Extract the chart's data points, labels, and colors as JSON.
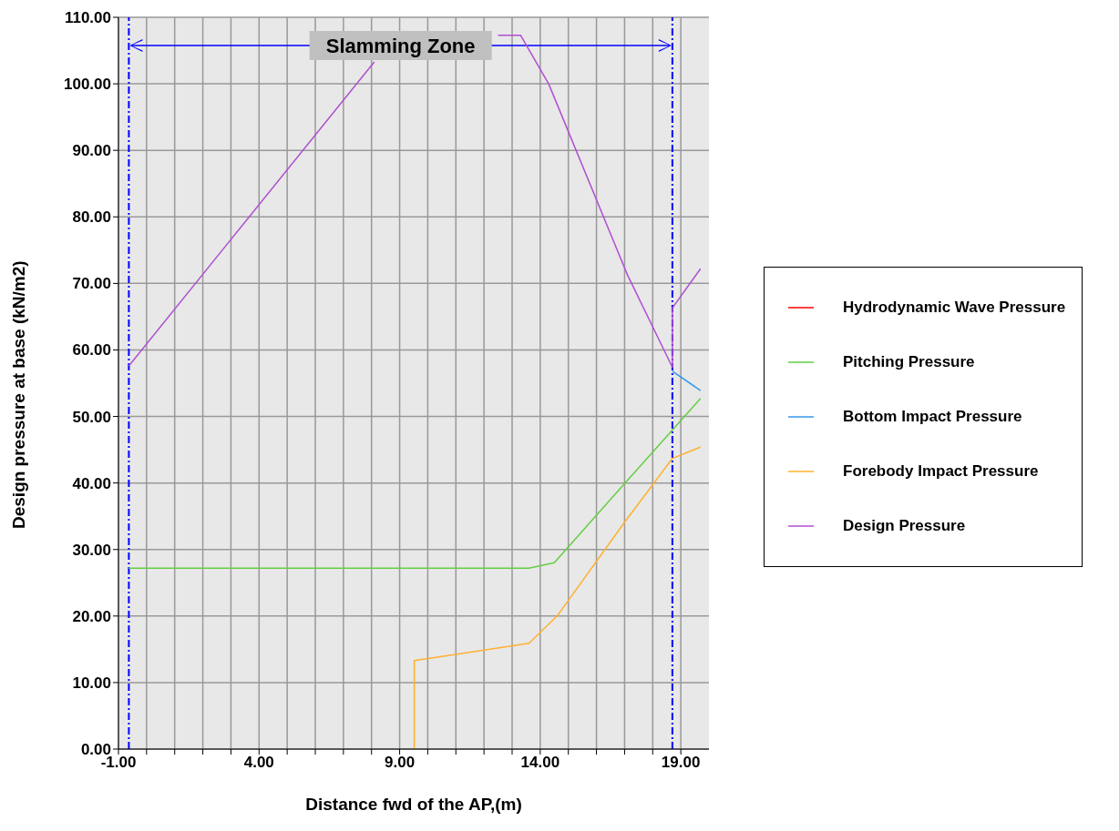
{
  "chart_data": {
    "type": "line",
    "xlabel": "Distance fwd of the AP,(m)",
    "ylabel": "Design pressure at base (kN/m2)",
    "xlim": [
      -1,
      20
    ],
    "ylim": [
      0,
      110
    ],
    "xticks": [
      {
        "value": -1,
        "label": "-1.00"
      },
      {
        "value": 0,
        "label": null
      },
      {
        "value": 1,
        "label": null
      },
      {
        "value": 2,
        "label": null
      },
      {
        "value": 3,
        "label": null
      },
      {
        "value": 4,
        "label": "4.00"
      },
      {
        "value": 5,
        "label": null
      },
      {
        "value": 6,
        "label": null
      },
      {
        "value": 7,
        "label": null
      },
      {
        "value": 8,
        "label": null
      },
      {
        "value": 9,
        "label": "9.00"
      },
      {
        "value": 10,
        "label": null
      },
      {
        "value": 11,
        "label": null
      },
      {
        "value": 12,
        "label": null
      },
      {
        "value": 13,
        "label": null
      },
      {
        "value": 14,
        "label": "14.00"
      },
      {
        "value": 15,
        "label": null
      },
      {
        "value": 16,
        "label": null
      },
      {
        "value": 17,
        "label": null
      },
      {
        "value": 18,
        "label": null
      },
      {
        "value": 19,
        "label": "19.00"
      }
    ],
    "yticks": [
      {
        "value": 0,
        "label": "0.00"
      },
      {
        "value": 10,
        "label": "10.00"
      },
      {
        "value": 20,
        "label": "20.00"
      },
      {
        "value": 30,
        "label": "30.00"
      },
      {
        "value": 40,
        "label": "40.00"
      },
      {
        "value": 50,
        "label": "50.00"
      },
      {
        "value": 60,
        "label": "60.00"
      },
      {
        "value": 70,
        "label": "70.00"
      },
      {
        "value": 80,
        "label": "80.00"
      },
      {
        "value": 90,
        "label": "90.00"
      },
      {
        "value": 100,
        "label": "100.00"
      },
      {
        "value": 110,
        "label": "110.00"
      }
    ],
    "grid": true,
    "legend": "right",
    "marker": "none",
    "line_style": "solid",
    "series": [
      {
        "name": "Hydrodynamic Wave Pressure",
        "color": "#ff0000"
      },
      {
        "name": "Pitching Pressure",
        "color": "#66cc44",
        "x": [
          -0.63,
          13.6,
          14.5,
          17.0,
          19.7
        ],
        "values": [
          27.2,
          27.2,
          28.0,
          39.9,
          52.7
        ]
      },
      {
        "name": "Bottom Impact Pressure",
        "color": "#3399ee",
        "x": [
          18.7,
          19.7
        ],
        "values": [
          56.8,
          53.9
        ]
      },
      {
        "name": "Forebody Impact Pressure",
        "color": "#ffb030",
        "x": [
          9.52,
          9.52,
          13.6,
          14.6,
          17.0,
          18.7,
          19.7
        ],
        "values": [
          0,
          13.3,
          15.9,
          20.0,
          34.1,
          43.7,
          45.4
        ]
      },
      {
        "name": "Design Pressure",
        "color": "#b050d0",
        "x": [
          -0.63,
          8.1,
          10.5,
          12.5,
          13.3,
          14.3,
          17.1,
          18.7,
          18.7,
          19.7
        ],
        "values": [
          57.6,
          103.3,
          null,
          107.3,
          107.3,
          100.0,
          71.3,
          57.4,
          66.3,
          72.2
        ]
      }
    ],
    "ref_lines": [
      {
        "axis": "x",
        "value": -0.63,
        "label": null,
        "color": "#0000ff",
        "line_style": "dashdot"
      },
      {
        "axis": "x",
        "value": 18.7,
        "label": null,
        "color": "#0000ff",
        "line_style": "dashdot"
      }
    ],
    "annotations": [
      "Slamming Zone"
    ]
  }
}
